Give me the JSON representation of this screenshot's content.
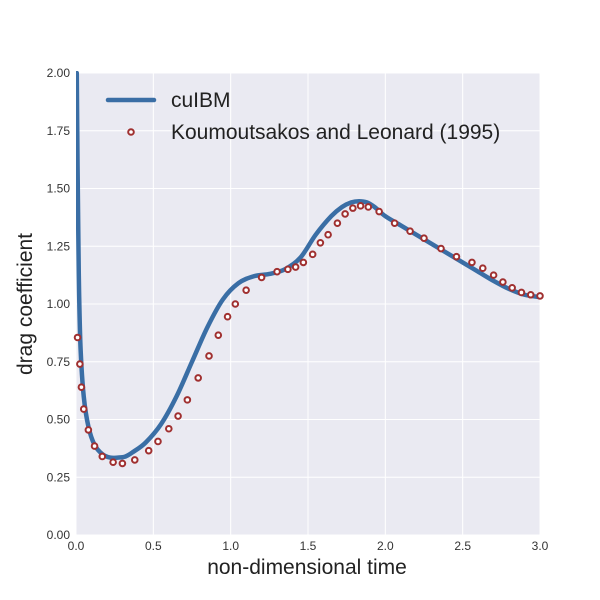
{
  "chart_data": {
    "type": "line",
    "title": "",
    "xlabel": "non-dimensional time",
    "ylabel": "drag coefficient",
    "xlim": [
      0.0,
      3.0
    ],
    "ylim": [
      0.0,
      2.0
    ],
    "grid": true,
    "legend_placement": "top-left",
    "x_ticks": [
      0.0,
      0.5,
      1.0,
      1.5,
      2.0,
      2.5,
      3.0
    ],
    "x_tick_labels": [
      "0.0",
      "0.5",
      "1.0",
      "1.5",
      "2.0",
      "2.5",
      "3.0"
    ],
    "y_ticks": [
      0.0,
      0.25,
      0.5,
      0.75,
      1.0,
      1.25,
      1.5,
      1.75,
      2.0
    ],
    "y_tick_labels": [
      "0.00",
      "0.25",
      "0.50",
      "0.75",
      "1.00",
      "1.25",
      "1.50",
      "1.75",
      "2.00"
    ],
    "series": [
      {
        "name": "cuIBM",
        "style": "line",
        "color": "#3a6ea5",
        "x": [
          0.005,
          0.01,
          0.015,
          0.02,
          0.03,
          0.05,
          0.08,
          0.12,
          0.17,
          0.22,
          0.27,
          0.32,
          0.37,
          0.45,
          0.55,
          0.65,
          0.75,
          0.85,
          0.95,
          1.05,
          1.15,
          1.25,
          1.35,
          1.45,
          1.55,
          1.65,
          1.72,
          1.78,
          1.83,
          1.88,
          1.93,
          2.0,
          2.1,
          2.2,
          2.3,
          2.4,
          2.5,
          2.6,
          2.7,
          2.8,
          2.9,
          3.0
        ],
        "y": [
          2.0,
          1.6,
          1.3,
          1.05,
          0.8,
          0.6,
          0.47,
          0.39,
          0.35,
          0.335,
          0.335,
          0.34,
          0.36,
          0.4,
          0.48,
          0.6,
          0.75,
          0.9,
          1.02,
          1.09,
          1.12,
          1.13,
          1.15,
          1.2,
          1.3,
          1.38,
          1.42,
          1.44,
          1.445,
          1.44,
          1.42,
          1.38,
          1.34,
          1.3,
          1.26,
          1.22,
          1.18,
          1.14,
          1.1,
          1.065,
          1.04,
          1.03
        ]
      },
      {
        "name": "Koumoutsakos and Leonard (1995)",
        "style": "markers",
        "color": "#a03030",
        "x": [
          0.01,
          0.025,
          0.035,
          0.05,
          0.08,
          0.12,
          0.17,
          0.24,
          0.3,
          0.38,
          0.47,
          0.53,
          0.6,
          0.66,
          0.72,
          0.79,
          0.86,
          0.92,
          0.98,
          1.03,
          1.1,
          1.2,
          1.3,
          1.37,
          1.42,
          1.47,
          1.53,
          1.58,
          1.63,
          1.69,
          1.74,
          1.79,
          1.84,
          1.89,
          1.96,
          2.06,
          2.16,
          2.25,
          2.36,
          2.46,
          2.56,
          2.63,
          2.7,
          2.76,
          2.82,
          2.88,
          2.94,
          3.0
        ],
        "y": [
          0.855,
          0.74,
          0.64,
          0.545,
          0.455,
          0.385,
          0.34,
          0.315,
          0.31,
          0.325,
          0.365,
          0.405,
          0.46,
          0.515,
          0.585,
          0.68,
          0.775,
          0.865,
          0.945,
          1.0,
          1.06,
          1.115,
          1.14,
          1.15,
          1.16,
          1.18,
          1.215,
          1.265,
          1.3,
          1.35,
          1.39,
          1.415,
          1.425,
          1.42,
          1.4,
          1.35,
          1.315,
          1.285,
          1.24,
          1.205,
          1.18,
          1.155,
          1.125,
          1.095,
          1.07,
          1.05,
          1.04,
          1.035
        ]
      }
    ]
  }
}
